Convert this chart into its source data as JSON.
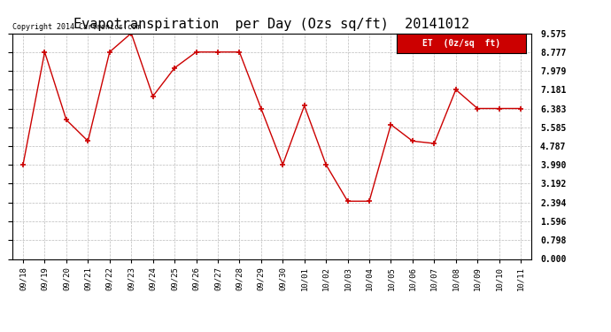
{
  "title": "Evapotranspiration  per Day (Ozs sq/ft)  20141012",
  "copyright_text": "Copyright 2014 Cartronics.com",
  "legend_label": "ET  (0z/sq  ft)",
  "dates": [
    "09/18",
    "09/19",
    "09/20",
    "09/21",
    "09/22",
    "09/23",
    "09/24",
    "09/25",
    "09/26",
    "09/27",
    "09/28",
    "09/29",
    "09/30",
    "10/01",
    "10/02",
    "10/03",
    "10/04",
    "10/05",
    "10/06",
    "10/07",
    "10/08",
    "10/09",
    "10/10",
    "10/11"
  ],
  "values": [
    4.0,
    8.777,
    5.9,
    5.0,
    8.777,
    9.575,
    6.9,
    8.1,
    8.777,
    8.777,
    8.777,
    6.383,
    4.0,
    6.5,
    4.0,
    2.45,
    2.45,
    5.7,
    5.0,
    4.9,
    7.181,
    6.383,
    6.383,
    6.383
  ],
  "line_color": "#cc0000",
  "background_color": "#ffffff",
  "grid_color": "#bbbbbb",
  "ylim": [
    0.0,
    9.575
  ],
  "yticks": [
    0.0,
    0.798,
    1.596,
    2.394,
    3.192,
    3.99,
    4.787,
    5.585,
    6.383,
    7.181,
    7.979,
    8.777,
    9.575
  ],
  "legend_bg": "#cc0000",
  "legend_text_color": "#ffffff",
  "figwidth": 6.9,
  "figheight": 3.75,
  "dpi": 100
}
